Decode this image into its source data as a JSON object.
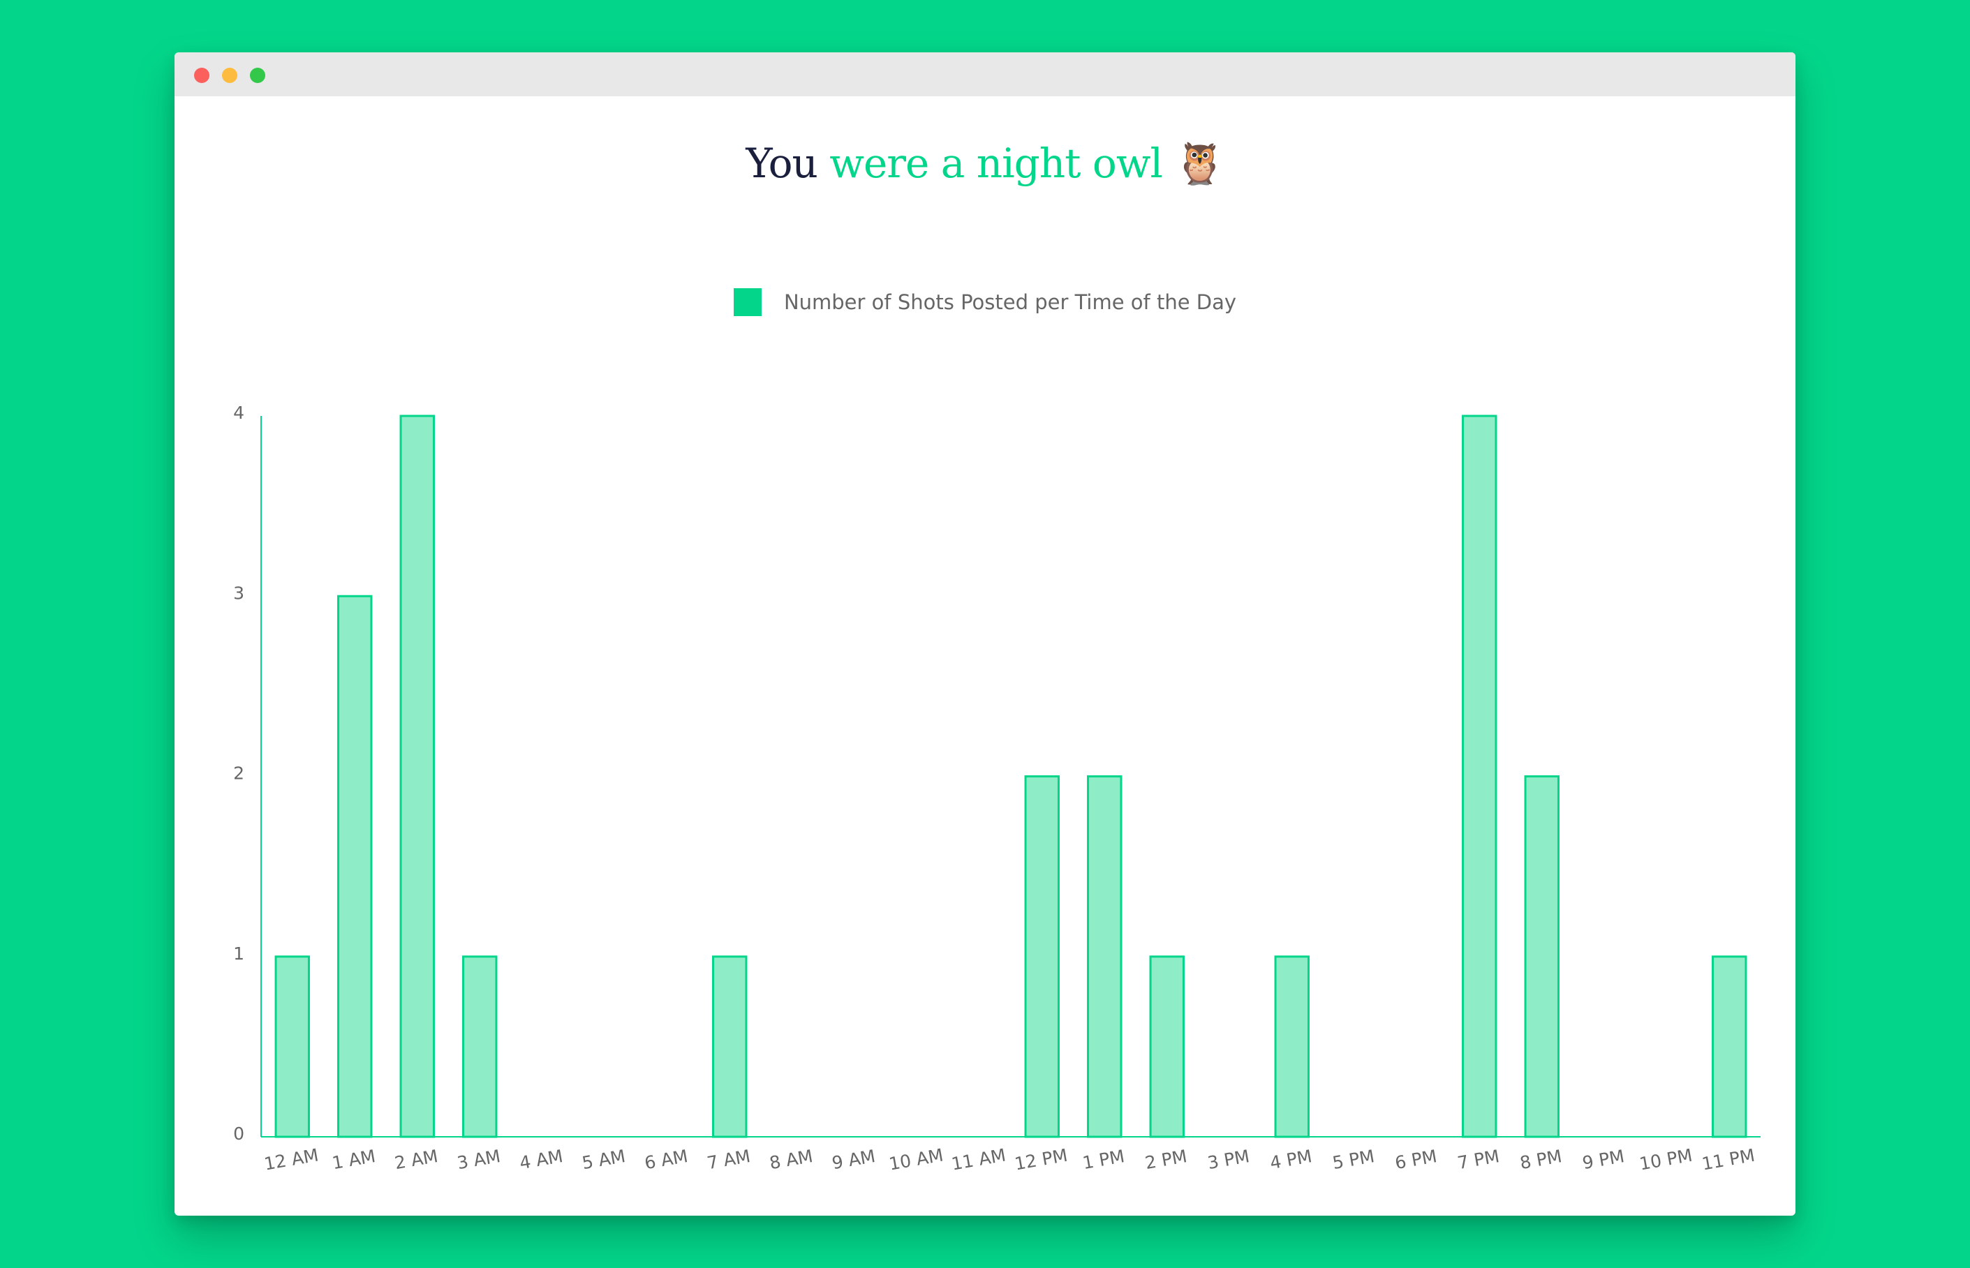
{
  "window": {
    "controls": [
      "close",
      "minimize",
      "maximize"
    ]
  },
  "heading": {
    "part1": "You",
    "part2": "were a night owl",
    "emoji": "🦉"
  },
  "colors": {
    "background": "#03d68a",
    "heading_dark": "#1a1f3d",
    "accent": "#03d68a",
    "bar_fill": "#8eedc6",
    "bar_stroke": "#03d68a",
    "close": "#fc605c",
    "minimize": "#fdbc40",
    "maximize": "#34c84a"
  },
  "chart_data": {
    "type": "bar",
    "title": "",
    "xlabel": "",
    "ylabel": "",
    "categories": [
      "12 AM",
      "1 AM",
      "2 AM",
      "3 AM",
      "4 AM",
      "5 AM",
      "6 AM",
      "7 AM",
      "8 AM",
      "9 AM",
      "10 AM",
      "11 AM",
      "12 PM",
      "1 PM",
      "2 PM",
      "3 PM",
      "4 PM",
      "5 PM",
      "6 PM",
      "7 PM",
      "8 PM",
      "9 PM",
      "10 PM",
      "11 PM"
    ],
    "series": [
      {
        "name": "Number of Shots Posted per Time of the Day",
        "values": [
          1,
          3,
          4,
          1,
          0,
          0,
          0,
          1,
          0,
          0,
          0,
          0,
          2,
          2,
          1,
          0,
          1,
          0,
          0,
          4,
          2,
          0,
          0,
          1
        ]
      }
    ],
    "ylim": [
      0,
      4
    ],
    "yticks": [
      0,
      1,
      2,
      3,
      4
    ],
    "grid": false,
    "legend": "top-center"
  }
}
